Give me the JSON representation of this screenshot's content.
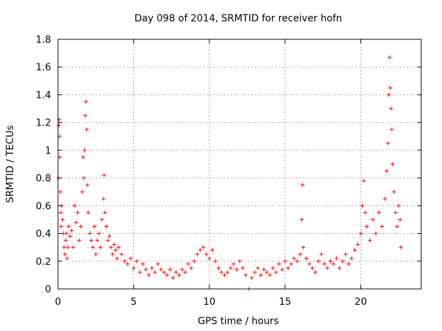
{
  "chart_data": {
    "type": "scatter",
    "title": "Day 098 of 2014, SRMTID for receiver hofn",
    "xlabel": "GPS time / hours",
    "ylabel": "SRMTID / TECUs",
    "xlim": [
      0,
      24
    ],
    "ylim": [
      0,
      1.8
    ],
    "xticks": [
      0,
      5,
      10,
      15,
      20
    ],
    "xtick_labels": [
      "0",
      "5",
      "10",
      "15",
      "20"
    ],
    "yticks": [
      0,
      0.2,
      0.4,
      0.6,
      0.8,
      1,
      1.2,
      1.4,
      1.6,
      1.8
    ],
    "ytick_labels": [
      "0",
      "0.2",
      "0.4",
      "0.6",
      "0.8",
      "1",
      "1.2",
      "1.4",
      "1.6",
      "1.8"
    ],
    "grid": true,
    "marker": "+",
    "color": "#ff0000",
    "series": [
      {
        "name": "SRMTID",
        "points": [
          [
            0.02,
            0.8
          ],
          [
            0.05,
            1.18
          ],
          [
            0.08,
            1.22
          ],
          [
            0.1,
            1.1
          ],
          [
            0.12,
            0.95
          ],
          [
            0.15,
            0.7
          ],
          [
            0.18,
            0.55
          ],
          [
            0.2,
            0.45
          ],
          [
            0.25,
            0.6
          ],
          [
            0.3,
            0.5
          ],
          [
            0.35,
            0.4
          ],
          [
            0.4,
            0.3
          ],
          [
            0.45,
            0.25
          ],
          [
            0.5,
            0.35
          ],
          [
            0.55,
            0.4
          ],
          [
            0.6,
            0.22
          ],
          [
            0.65,
            0.3
          ],
          [
            0.7,
            0.45
          ],
          [
            0.8,
            0.38
          ],
          [
            0.9,
            0.42
          ],
          [
            1.0,
            0.3
          ],
          [
            1.1,
            0.6
          ],
          [
            1.2,
            0.48
          ],
          [
            1.3,
            0.55
          ],
          [
            1.4,
            0.35
          ],
          [
            1.5,
            0.45
          ],
          [
            1.6,
            0.7
          ],
          [
            1.65,
            0.95
          ],
          [
            1.7,
            0.8
          ],
          [
            1.75,
            1.0
          ],
          [
            1.8,
            1.25
          ],
          [
            1.85,
            1.35
          ],
          [
            1.9,
            1.15
          ],
          [
            1.95,
            0.75
          ],
          [
            2.0,
            0.55
          ],
          [
            2.1,
            0.4
          ],
          [
            2.2,
            0.35
          ],
          [
            2.3,
            0.3
          ],
          [
            2.4,
            0.45
          ],
          [
            2.5,
            0.25
          ],
          [
            2.6,
            0.35
          ],
          [
            2.7,
            0.4
          ],
          [
            2.8,
            0.3
          ],
          [
            2.9,
            0.5
          ],
          [
            3.0,
            0.65
          ],
          [
            3.05,
            0.82
          ],
          [
            3.1,
            0.55
          ],
          [
            3.2,
            0.45
          ],
          [
            3.3,
            0.35
          ],
          [
            3.4,
            0.38
          ],
          [
            3.5,
            0.3
          ],
          [
            3.6,
            0.25
          ],
          [
            3.7,
            0.32
          ],
          [
            3.8,
            0.28
          ],
          [
            3.9,
            0.22
          ],
          [
            4.0,
            0.3
          ],
          [
            4.2,
            0.25
          ],
          [
            4.4,
            0.2
          ],
          [
            4.6,
            0.18
          ],
          [
            4.8,
            0.22
          ],
          [
            5.0,
            0.15
          ],
          [
            5.2,
            0.2
          ],
          [
            5.4,
            0.12
          ],
          [
            5.6,
            0.18
          ],
          [
            5.8,
            0.14
          ],
          [
            6.0,
            0.1
          ],
          [
            6.2,
            0.15
          ],
          [
            6.4,
            0.12
          ],
          [
            6.6,
            0.18
          ],
          [
            6.8,
            0.14
          ],
          [
            7.0,
            0.12
          ],
          [
            7.2,
            0.1
          ],
          [
            7.4,
            0.14
          ],
          [
            7.6,
            0.08
          ],
          [
            7.8,
            0.12
          ],
          [
            8.0,
            0.1
          ],
          [
            8.2,
            0.14
          ],
          [
            8.4,
            0.12
          ],
          [
            8.6,
            0.18
          ],
          [
            8.8,
            0.15
          ],
          [
            9.0,
            0.2
          ],
          [
            9.2,
            0.25
          ],
          [
            9.4,
            0.28
          ],
          [
            9.6,
            0.3
          ],
          [
            9.8,
            0.25
          ],
          [
            10.0,
            0.22
          ],
          [
            10.2,
            0.28
          ],
          [
            10.4,
            0.2
          ],
          [
            10.6,
            0.15
          ],
          [
            10.8,
            0.12
          ],
          [
            11.0,
            0.1
          ],
          [
            11.2,
            0.12
          ],
          [
            11.4,
            0.15
          ],
          [
            11.6,
            0.18
          ],
          [
            11.8,
            0.14
          ],
          [
            12.0,
            0.2
          ],
          [
            12.2,
            0.15
          ],
          [
            12.4,
            0.1
          ],
          [
            12.6,
            0.0
          ],
          [
            12.8,
            0.08
          ],
          [
            13.0,
            0.12
          ],
          [
            13.2,
            0.15
          ],
          [
            13.4,
            0.1
          ],
          [
            13.6,
            0.14
          ],
          [
            13.8,
            0.12
          ],
          [
            14.0,
            0.1
          ],
          [
            14.2,
            0.15
          ],
          [
            14.4,
            0.12
          ],
          [
            14.6,
            0.18
          ],
          [
            14.8,
            0.14
          ],
          [
            15.0,
            0.2
          ],
          [
            15.2,
            0.15
          ],
          [
            15.4,
            0.18
          ],
          [
            15.6,
            0.22
          ],
          [
            15.8,
            0.2
          ],
          [
            16.0,
            0.25
          ],
          [
            16.1,
            0.5
          ],
          [
            16.15,
            0.75
          ],
          [
            16.2,
            0.3
          ],
          [
            16.4,
            0.22
          ],
          [
            16.6,
            0.18
          ],
          [
            16.8,
            0.15
          ],
          [
            17.0,
            0.12
          ],
          [
            17.2,
            0.2
          ],
          [
            17.4,
            0.25
          ],
          [
            17.6,
            0.18
          ],
          [
            17.8,
            0.15
          ],
          [
            18.0,
            0.2
          ],
          [
            18.2,
            0.18
          ],
          [
            18.4,
            0.22
          ],
          [
            18.6,
            0.15
          ],
          [
            18.8,
            0.2
          ],
          [
            19.0,
            0.25
          ],
          [
            19.2,
            0.18
          ],
          [
            19.4,
            0.22
          ],
          [
            19.6,
            0.28
          ],
          [
            19.8,
            0.32
          ],
          [
            20.0,
            0.4
          ],
          [
            20.1,
            0.6
          ],
          [
            20.2,
            0.78
          ],
          [
            20.3,
            0.55
          ],
          [
            20.4,
            0.45
          ],
          [
            20.6,
            0.35
          ],
          [
            20.8,
            0.5
          ],
          [
            21.0,
            0.4
          ],
          [
            21.2,
            0.55
          ],
          [
            21.4,
            0.45
          ],
          [
            21.6,
            0.65
          ],
          [
            21.7,
            0.85
          ],
          [
            21.8,
            1.05
          ],
          [
            21.85,
            1.4
          ],
          [
            21.9,
            1.67
          ],
          [
            21.95,
            1.45
          ],
          [
            22.0,
            1.3
          ],
          [
            22.05,
            1.15
          ],
          [
            22.1,
            0.9
          ],
          [
            22.2,
            0.7
          ],
          [
            22.3,
            0.55
          ],
          [
            22.4,
            0.45
          ],
          [
            22.5,
            0.6
          ],
          [
            22.6,
            0.5
          ],
          [
            22.65,
            0.3
          ]
        ]
      }
    ]
  }
}
